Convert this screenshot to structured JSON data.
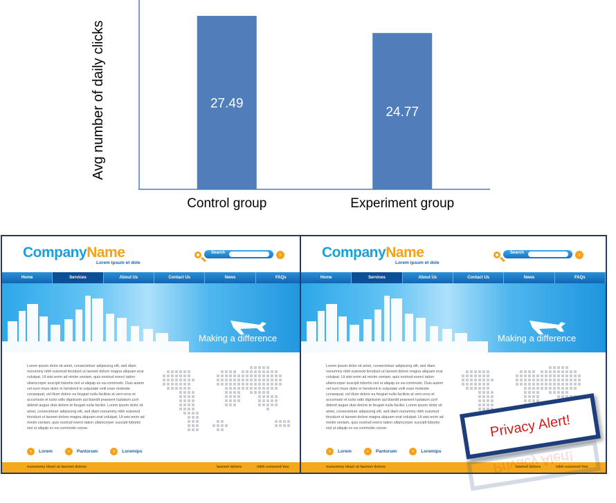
{
  "chart_data": {
    "type": "bar",
    "categories": [
      "Control group",
      "Experiment group"
    ],
    "values": [
      27.49,
      24.77
    ],
    "data_labels": [
      "27.49",
      "24.77"
    ],
    "title": "",
    "xlabel": "",
    "ylabel": "Avg number of daily clicks",
    "ylim": [
      0,
      30
    ],
    "grid": false,
    "bar_color": "#4f7ebb",
    "axis_color": "#4f7ebb"
  },
  "mockup": {
    "logo_part1": "Company",
    "logo_part2": "Name",
    "tagline": "Lorem ipsum et dole",
    "search_label": "Search",
    "search_go": "›",
    "nav": [
      "Home",
      "Services",
      "About Us",
      "Contact Us",
      "News",
      "FAQs"
    ],
    "hero_text": "Making a difference",
    "body_text": "Lorem ipsum dolor sit amet, consectetuer adipiscing elit, sed diam nonummy nibh euismod tincidunt ut laoreet dolore magna aliquam erat volutpat. Ut wisi enim ad minim veniam, quis nostrud exerci tation ullamcorper suscipit lobortis nisl ut aliquip ex ea commodo. Duis autem vel eum iriure dolor in hendrerit in vulputate velit esse molestie consequat, vel illum dolore eu feugiat nulla facilisis at vero eros et accumsan et iusto odio dignissim qui blandit praesent luptatum zzril delenit augue duis dolore te feugait nulla facilisi. Lorem ipsum dolor sit amet, consectetuer adipiscing elit, sed diam nonummy nibh euismod tincidunt ut laoreet dolore magna aliquam erat volutpat. Ut wisi enim ad minim veniam, quis nostrud exerci tation ullamcorper suscipit lobortis nisl ut aliquip ex ea commodo conse-",
    "links": [
      "Lorem",
      "Pantorum",
      "Loremips"
    ],
    "link_icon": "›",
    "footer_left": "nonummy idunt ut laoreet dolore",
    "footer_mid": "laoreet dolore",
    "footer_right": "nibh euismod tinc"
  },
  "alert": {
    "text": "Privacy Alert!",
    "border_color": "#1d3e7a",
    "text_color": "#d11c1c"
  },
  "colors": {
    "brand_blue": "#1b9fd8",
    "brand_orange": "#f5a21b",
    "nav_blue": "#1265b3"
  }
}
